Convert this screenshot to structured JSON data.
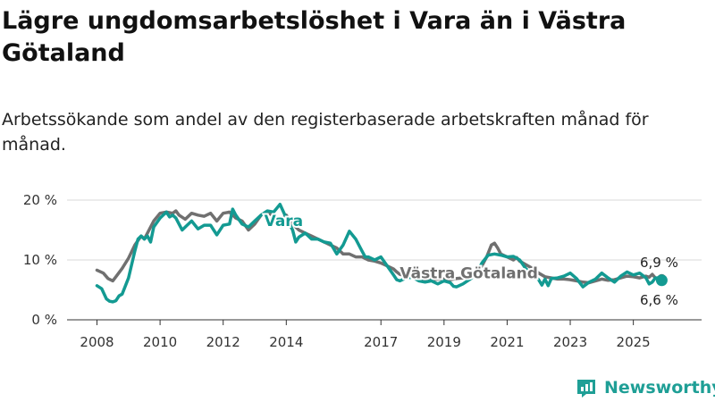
{
  "title": "Lägre ungdomsarbetslöshet i Vara än i Västra Götaland",
  "subtitle": "Arbetssökande som andel av den registerbaserade arbetskraften månad för månad.",
  "brand": {
    "name": "Newsworthy",
    "color": "#1f9f96"
  },
  "chart_data": {
    "type": "line",
    "title": "Lägre ungdomsarbetslöshet i Vara än i Västra Götaland",
    "subtitle": "Arbetssökande som andel av den registerbaserade arbetskraften månad för månad.",
    "xlabel": "",
    "ylabel": "",
    "ylim": [
      0,
      20
    ],
    "xlim": [
      2008.0,
      2026.2
    ],
    "y_ticks": [
      0,
      10,
      20
    ],
    "y_tick_labels": [
      "0 %",
      "10 %",
      "20 %"
    ],
    "x_ticks": [
      2008,
      2010,
      2012,
      2014,
      2017,
      2019,
      2021,
      2023,
      2025
    ],
    "x_tick_labels": [
      "2008",
      "2010",
      "2012",
      "2014",
      "2017",
      "2019",
      "2021",
      "2023",
      "2025"
    ],
    "grid": "horizontal",
    "x_label_position": "bottom",
    "series": [
      {
        "name": "Västra Götaland",
        "label": "Västra Götaland",
        "color": "#707070",
        "end_label": "6,9 %",
        "points": [
          [
            2008.0,
            8.3
          ],
          [
            2008.2,
            7.8
          ],
          [
            2008.35,
            6.9
          ],
          [
            2008.5,
            6.5
          ],
          [
            2008.6,
            7.2
          ],
          [
            2008.8,
            8.6
          ],
          [
            2009.0,
            10.3
          ],
          [
            2009.2,
            12.5
          ],
          [
            2009.4,
            14.0
          ],
          [
            2009.5,
            13.5
          ],
          [
            2009.6,
            14.5
          ],
          [
            2009.8,
            16.5
          ],
          [
            2010.0,
            17.8
          ],
          [
            2010.2,
            18.0
          ],
          [
            2010.4,
            17.8
          ],
          [
            2010.5,
            18.2
          ],
          [
            2010.6,
            17.5
          ],
          [
            2010.8,
            16.8
          ],
          [
            2011.0,
            17.8
          ],
          [
            2011.2,
            17.5
          ],
          [
            2011.4,
            17.3
          ],
          [
            2011.6,
            17.8
          ],
          [
            2011.8,
            16.5
          ],
          [
            2012.0,
            17.8
          ],
          [
            2012.2,
            18.0
          ],
          [
            2012.4,
            17.0
          ],
          [
            2012.6,
            16.5
          ],
          [
            2012.8,
            15.0
          ],
          [
            2013.0,
            16.0
          ],
          [
            2013.2,
            17.5
          ],
          [
            2013.4,
            18.0
          ],
          [
            2013.6,
            17.3
          ],
          [
            2013.8,
            16.5
          ],
          [
            2014.0,
            17.5
          ],
          [
            2014.2,
            16.0
          ],
          [
            2014.4,
            15.0
          ],
          [
            2014.6,
            14.5
          ],
          [
            2014.8,
            14.0
          ],
          [
            2015.0,
            13.5
          ],
          [
            2015.2,
            13.0
          ],
          [
            2015.4,
            12.5
          ],
          [
            2015.6,
            12.0
          ],
          [
            2015.8,
            11.0
          ],
          [
            2016.0,
            11.0
          ],
          [
            2016.2,
            10.5
          ],
          [
            2016.4,
            10.5
          ],
          [
            2016.6,
            10.0
          ],
          [
            2016.8,
            9.8
          ],
          [
            2017.0,
            9.5
          ],
          [
            2017.2,
            9.0
          ],
          [
            2017.4,
            8.5
          ],
          [
            2017.5,
            8.0
          ],
          [
            2017.6,
            7.6
          ],
          [
            2017.8,
            7.3
          ],
          [
            2018.0,
            7.2
          ],
          [
            2018.2,
            7.0
          ],
          [
            2018.4,
            6.8
          ],
          [
            2018.6,
            6.7
          ],
          [
            2018.8,
            6.8
          ],
          [
            2019.0,
            6.8
          ],
          [
            2019.2,
            6.7
          ],
          [
            2019.4,
            6.9
          ],
          [
            2019.6,
            7.0
          ],
          [
            2019.8,
            7.4
          ],
          [
            2020.0,
            8.0
          ],
          [
            2020.2,
            9.0
          ],
          [
            2020.35,
            10.5
          ],
          [
            2020.5,
            12.5
          ],
          [
            2020.6,
            12.8
          ],
          [
            2020.7,
            12.0
          ],
          [
            2020.8,
            11.0
          ],
          [
            2021.0,
            10.5
          ],
          [
            2021.2,
            10.0
          ],
          [
            2021.3,
            10.4
          ],
          [
            2021.4,
            9.8
          ],
          [
            2021.6,
            9.2
          ],
          [
            2021.8,
            8.6
          ],
          [
            2022.0,
            7.8
          ],
          [
            2022.2,
            7.2
          ],
          [
            2022.4,
            7.0
          ],
          [
            2022.6,
            6.8
          ],
          [
            2022.8,
            6.8
          ],
          [
            2023.0,
            6.7
          ],
          [
            2023.2,
            6.5
          ],
          [
            2023.4,
            6.3
          ],
          [
            2023.6,
            6.2
          ],
          [
            2023.8,
            6.5
          ],
          [
            2024.0,
            6.8
          ],
          [
            2024.2,
            6.6
          ],
          [
            2024.4,
            6.7
          ],
          [
            2024.6,
            7.0
          ],
          [
            2024.8,
            7.3
          ],
          [
            2025.0,
            7.2
          ],
          [
            2025.2,
            7.0
          ],
          [
            2025.4,
            7.3
          ],
          [
            2025.5,
            7.1
          ],
          [
            2025.6,
            7.6
          ],
          [
            2025.7,
            7.0
          ],
          [
            2025.8,
            6.8
          ],
          [
            2025.9,
            6.9
          ]
        ]
      },
      {
        "name": "Vara",
        "label": "Vara",
        "color": "#139a92",
        "end_label": "6,6 %",
        "points": [
          [
            2008.0,
            5.7
          ],
          [
            2008.15,
            5.2
          ],
          [
            2008.3,
            3.5
          ],
          [
            2008.4,
            3.1
          ],
          [
            2008.5,
            3.0
          ],
          [
            2008.6,
            3.2
          ],
          [
            2008.7,
            4.0
          ],
          [
            2008.8,
            4.3
          ],
          [
            2009.0,
            7.0
          ],
          [
            2009.2,
            11.5
          ],
          [
            2009.3,
            13.5
          ],
          [
            2009.4,
            14.0
          ],
          [
            2009.5,
            13.5
          ],
          [
            2009.6,
            14.0
          ],
          [
            2009.7,
            13.0
          ],
          [
            2009.8,
            15.5
          ],
          [
            2010.0,
            17.0
          ],
          [
            2010.2,
            18.0
          ],
          [
            2010.3,
            17.2
          ],
          [
            2010.4,
            17.5
          ],
          [
            2010.5,
            17.0
          ],
          [
            2010.6,
            16.0
          ],
          [
            2010.7,
            15.0
          ],
          [
            2010.8,
            15.5
          ],
          [
            2011.0,
            16.5
          ],
          [
            2011.2,
            15.2
          ],
          [
            2011.4,
            15.8
          ],
          [
            2011.6,
            15.8
          ],
          [
            2011.7,
            15.0
          ],
          [
            2011.8,
            14.2
          ],
          [
            2012.0,
            15.8
          ],
          [
            2012.2,
            16.0
          ],
          [
            2012.3,
            18.5
          ],
          [
            2012.4,
            17.5
          ],
          [
            2012.6,
            16.0
          ],
          [
            2012.8,
            15.5
          ],
          [
            2013.0,
            16.5
          ],
          [
            2013.2,
            17.5
          ],
          [
            2013.4,
            18.2
          ],
          [
            2013.6,
            18.0
          ],
          [
            2013.8,
            19.3
          ],
          [
            2014.0,
            17.0
          ],
          [
            2014.2,
            15.0
          ],
          [
            2014.3,
            13.0
          ],
          [
            2014.4,
            13.8
          ],
          [
            2014.6,
            14.5
          ],
          [
            2014.8,
            13.5
          ],
          [
            2015.0,
            13.5
          ],
          [
            2015.2,
            13.0
          ],
          [
            2015.4,
            12.8
          ],
          [
            2015.6,
            11.0
          ],
          [
            2015.8,
            12.5
          ],
          [
            2016.0,
            14.8
          ],
          [
            2016.2,
            13.5
          ],
          [
            2016.4,
            11.5
          ],
          [
            2016.5,
            10.5
          ],
          [
            2016.6,
            10.5
          ],
          [
            2016.8,
            10.0
          ],
          [
            2017.0,
            10.5
          ],
          [
            2017.2,
            9.0
          ],
          [
            2017.4,
            7.5
          ],
          [
            2017.5,
            6.7
          ],
          [
            2017.6,
            6.5
          ],
          [
            2017.8,
            7.0
          ],
          [
            2018.0,
            7.1
          ],
          [
            2018.2,
            6.5
          ],
          [
            2018.4,
            6.3
          ],
          [
            2018.6,
            6.5
          ],
          [
            2018.8,
            6.0
          ],
          [
            2019.0,
            6.5
          ],
          [
            2019.2,
            6.2
          ],
          [
            2019.3,
            5.6
          ],
          [
            2019.4,
            5.5
          ],
          [
            2019.6,
            6.0
          ],
          [
            2019.8,
            6.7
          ],
          [
            2020.0,
            7.5
          ],
          [
            2020.2,
            9.5
          ],
          [
            2020.4,
            10.8
          ],
          [
            2020.6,
            11.0
          ],
          [
            2020.8,
            10.8
          ],
          [
            2021.0,
            10.5
          ],
          [
            2021.2,
            10.6
          ],
          [
            2021.4,
            10.0
          ],
          [
            2021.6,
            8.5
          ],
          [
            2021.8,
            7.6
          ],
          [
            2022.0,
            6.7
          ],
          [
            2022.1,
            5.8
          ],
          [
            2022.2,
            6.8
          ],
          [
            2022.3,
            5.7
          ],
          [
            2022.4,
            6.9
          ],
          [
            2022.6,
            7.0
          ],
          [
            2022.8,
            7.3
          ],
          [
            2023.0,
            7.8
          ],
          [
            2023.2,
            6.9
          ],
          [
            2023.4,
            5.5
          ],
          [
            2023.6,
            6.3
          ],
          [
            2023.8,
            6.8
          ],
          [
            2024.0,
            7.8
          ],
          [
            2024.2,
            7.0
          ],
          [
            2024.4,
            6.3
          ],
          [
            2024.6,
            7.3
          ],
          [
            2024.8,
            8.0
          ],
          [
            2025.0,
            7.5
          ],
          [
            2025.2,
            7.8
          ],
          [
            2025.4,
            7.0
          ],
          [
            2025.5,
            6.0
          ],
          [
            2025.6,
            6.3
          ],
          [
            2025.7,
            7.0
          ],
          [
            2025.8,
            7.0
          ],
          [
            2025.9,
            6.6
          ]
        ]
      }
    ]
  }
}
